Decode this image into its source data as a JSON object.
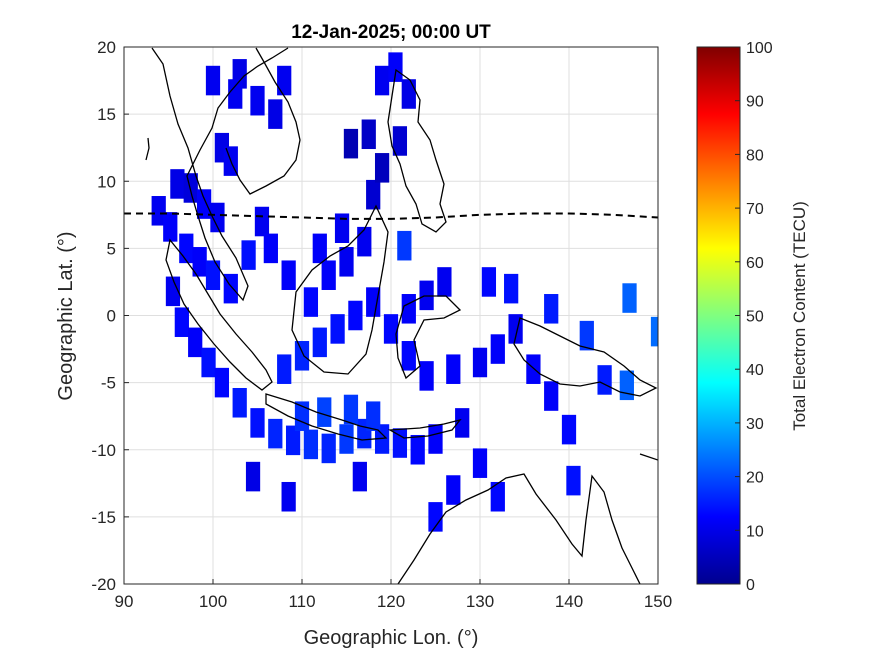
{
  "chart_data": {
    "type": "heatmap",
    "title": "12-Jan-2025; 00:00 UT",
    "xlabel": "Geographic Lon. (°)",
    "ylabel": "Geographic Lat. (°)",
    "xlim": [
      90,
      150
    ],
    "ylim": [
      -20,
      20
    ],
    "xticks": [
      "90",
      "100",
      "110",
      "120",
      "130",
      "140",
      "150"
    ],
    "yticks": [
      "20",
      "15",
      "10",
      "5",
      "0",
      "-5",
      "-10",
      "-15",
      "-20"
    ],
    "grid": true,
    "colorbar": {
      "label": "Total Electron Content (TECU)",
      "range": [
        0,
        100
      ],
      "ticks": [
        "100",
        "90",
        "80",
        "70",
        "60",
        "50",
        "40",
        "30",
        "20",
        "10",
        "0"
      ],
      "colormap": "jet"
    },
    "magnetic_equator_lat": [
      [
        90,
        7.6
      ],
      [
        95,
        7.6
      ],
      [
        100,
        7.5
      ],
      [
        105,
        7.4
      ],
      [
        110,
        7.3
      ],
      [
        115,
        7.2
      ],
      [
        120,
        7.2
      ],
      [
        125,
        7.3
      ],
      [
        130,
        7.5
      ],
      [
        135,
        7.6
      ],
      [
        140,
        7.6
      ],
      [
        145,
        7.5
      ],
      [
        150,
        7.3
      ]
    ],
    "tec_cells": [
      {
        "lon": 93.9,
        "lat": 7.8,
        "tec": 11
      },
      {
        "lon": 95.2,
        "lat": 6.6,
        "tec": 12
      },
      {
        "lon": 96.0,
        "lat": 9.8,
        "tec": 10
      },
      {
        "lon": 97.5,
        "lat": 9.5,
        "tec": 9
      },
      {
        "lon": 99.0,
        "lat": 8.3,
        "tec": 12
      },
      {
        "lon": 100.5,
        "lat": 7.3,
        "tec": 11
      },
      {
        "lon": 97.0,
        "lat": 5.0,
        "tec": 13
      },
      {
        "lon": 98.5,
        "lat": 4.0,
        "tec": 12
      },
      {
        "lon": 100.0,
        "lat": 3.0,
        "tec": 14
      },
      {
        "lon": 102.0,
        "lat": 2.0,
        "tec": 13
      },
      {
        "lon": 104.0,
        "lat": 4.5,
        "tec": 14
      },
      {
        "lon": 95.5,
        "lat": 1.8,
        "tec": 11
      },
      {
        "lon": 96.5,
        "lat": -0.5,
        "tec": 13
      },
      {
        "lon": 98.0,
        "lat": -2.0,
        "tec": 12
      },
      {
        "lon": 99.5,
        "lat": -3.5,
        "tec": 14
      },
      {
        "lon": 101.0,
        "lat": -5.0,
        "tec": 13
      },
      {
        "lon": 103.0,
        "lat": -6.5,
        "tec": 15
      },
      {
        "lon": 105.0,
        "lat": -8.0,
        "tec": 14
      },
      {
        "lon": 107.0,
        "lat": -8.8,
        "tec": 16
      },
      {
        "lon": 109.0,
        "lat": -9.3,
        "tec": 15
      },
      {
        "lon": 111.0,
        "lat": -9.6,
        "tec": 17
      },
      {
        "lon": 113.0,
        "lat": -9.9,
        "tec": 16
      },
      {
        "lon": 115.0,
        "lat": -9.2,
        "tec": 18
      },
      {
        "lon": 117.0,
        "lat": -8.8,
        "tec": 16
      },
      {
        "lon": 119.0,
        "lat": -9.2,
        "tec": 15
      },
      {
        "lon": 121.0,
        "lat": -9.5,
        "tec": 14
      },
      {
        "lon": 123.0,
        "lat": -10.0,
        "tec": 13
      },
      {
        "lon": 125.0,
        "lat": -9.2,
        "tec": 12
      },
      {
        "lon": 110.0,
        "lat": -7.5,
        "tec": 17
      },
      {
        "lon": 112.5,
        "lat": -7.2,
        "tec": 19
      },
      {
        "lon": 115.5,
        "lat": -7.0,
        "tec": 18
      },
      {
        "lon": 118.0,
        "lat": -7.5,
        "tec": 17
      },
      {
        "lon": 108.0,
        "lat": -4.0,
        "tec": 15
      },
      {
        "lon": 110.0,
        "lat": -3.0,
        "tec": 16
      },
      {
        "lon": 112.0,
        "lat": -2.0,
        "tec": 15
      },
      {
        "lon": 114.0,
        "lat": -1.0,
        "tec": 14
      },
      {
        "lon": 116.0,
        "lat": 0.0,
        "tec": 13
      },
      {
        "lon": 118.0,
        "lat": 1.0,
        "tec": 12
      },
      {
        "lon": 111.0,
        "lat": 1.0,
        "tec": 13
      },
      {
        "lon": 113.0,
        "lat": 3.0,
        "tec": 12
      },
      {
        "lon": 115.0,
        "lat": 4.0,
        "tec": 11
      },
      {
        "lon": 117.0,
        "lat": 5.5,
        "tec": 11
      },
      {
        "lon": 120.0,
        "lat": -1.0,
        "tec": 13
      },
      {
        "lon": 122.0,
        "lat": 0.5,
        "tec": 12
      },
      {
        "lon": 124.0,
        "lat": 1.5,
        "tec": 11
      },
      {
        "lon": 126.0,
        "lat": 2.5,
        "tec": 11
      },
      {
        "lon": 122.0,
        "lat": -3.0,
        "tec": 13
      },
      {
        "lon": 124.0,
        "lat": -4.5,
        "tec": 12
      },
      {
        "lon": 127.0,
        "lat": -4.0,
        "tec": 12
      },
      {
        "lon": 130.0,
        "lat": -3.5,
        "tec": 11
      },
      {
        "lon": 132.0,
        "lat": -2.5,
        "tec": 12
      },
      {
        "lon": 134.0,
        "lat": -1.0,
        "tec": 11
      },
      {
        "lon": 136.0,
        "lat": -4.0,
        "tec": 12
      },
      {
        "lon": 138.0,
        "lat": -6.0,
        "tec": 12
      },
      {
        "lon": 140.0,
        "lat": -8.5,
        "tec": 13
      },
      {
        "lon": 140.5,
        "lat": -12.3,
        "tec": 14
      },
      {
        "lon": 144.0,
        "lat": -4.8,
        "tec": 15
      },
      {
        "lon": 146.5,
        "lat": -5.2,
        "tec": 22
      },
      {
        "lon": 146.8,
        "lat": 1.3,
        "tec": 22
      },
      {
        "lon": 150.0,
        "lat": -1.2,
        "tec": 23
      },
      {
        "lon": 142.0,
        "lat": -1.5,
        "tec": 18
      },
      {
        "lon": 138.0,
        "lat": 0.5,
        "tec": 15
      },
      {
        "lon": 133.5,
        "lat": 2.0,
        "tec": 14
      },
      {
        "lon": 131.0,
        "lat": 2.5,
        "tec": 13
      },
      {
        "lon": 128.0,
        "lat": -8.0,
        "tec": 11
      },
      {
        "lon": 130.0,
        "lat": -11.0,
        "tec": 12
      },
      {
        "lon": 132.0,
        "lat": -13.5,
        "tec": 13
      },
      {
        "lon": 127.0,
        "lat": -13.0,
        "tec": 12
      },
      {
        "lon": 125.0,
        "lat": -15.0,
        "tec": 13
      },
      {
        "lon": 116.5,
        "lat": -12.0,
        "tec": 11
      },
      {
        "lon": 104.5,
        "lat": -12.0,
        "tec": 10
      },
      {
        "lon": 108.5,
        "lat": -13.5,
        "tec": 11
      },
      {
        "lon": 121.5,
        "lat": 5.2,
        "tec": 18
      },
      {
        "lon": 118.0,
        "lat": 9.0,
        "tec": 8
      },
      {
        "lon": 119.0,
        "lat": 11.0,
        "tec": 6
      },
      {
        "lon": 117.5,
        "lat": 13.5,
        "tec": 7
      },
      {
        "lon": 115.5,
        "lat": 12.8,
        "tec": 5
      },
      {
        "lon": 121.0,
        "lat": 13.0,
        "tec": 8
      },
      {
        "lon": 122.0,
        "lat": 16.5,
        "tec": 10
      },
      {
        "lon": 119.0,
        "lat": 17.5,
        "tec": 11
      },
      {
        "lon": 120.5,
        "lat": 18.5,
        "tec": 12
      },
      {
        "lon": 107.0,
        "lat": 15.0,
        "tec": 10
      },
      {
        "lon": 105.0,
        "lat": 16.0,
        "tec": 11
      },
      {
        "lon": 103.0,
        "lat": 18.0,
        "tec": 10
      },
      {
        "lon": 108.0,
        "lat": 17.5,
        "tec": 11
      },
      {
        "lon": 102.5,
        "lat": 16.5,
        "tec": 11
      },
      {
        "lon": 100.0,
        "lat": 17.5,
        "tec": 11
      },
      {
        "lon": 101.0,
        "lat": 12.5,
        "tec": 10
      },
      {
        "lon": 102.0,
        "lat": 11.5,
        "tec": 11
      },
      {
        "lon": 105.5,
        "lat": 7.0,
        "tec": 11
      },
      {
        "lon": 106.5,
        "lat": 5.0,
        "tec": 12
      },
      {
        "lon": 108.5,
        "lat": 3.0,
        "tec": 12
      },
      {
        "lon": 114.5,
        "lat": 6.5,
        "tec": 11
      },
      {
        "lon": 112.0,
        "lat": 5.0,
        "tec": 12
      }
    ]
  }
}
